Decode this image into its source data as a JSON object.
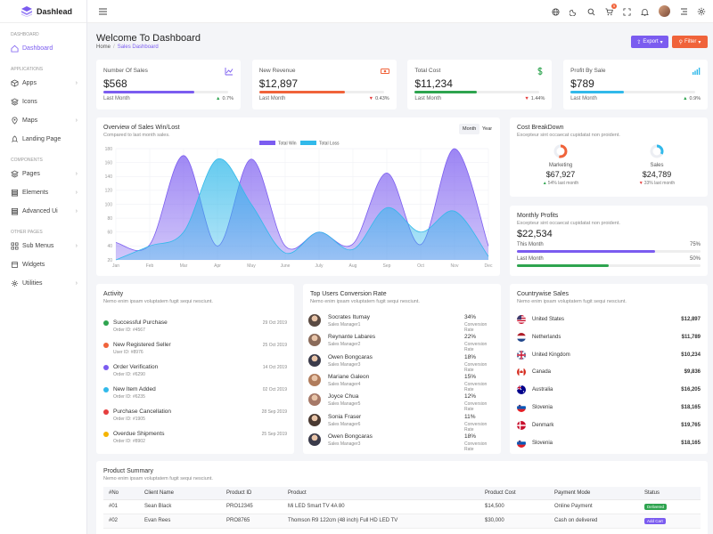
{
  "app": {
    "name": "Dashlead"
  },
  "sidebar": {
    "sections": [
      {
        "title": "Dashboard",
        "items": [
          {
            "label": "Dashboard",
            "icon": "home-icon",
            "active": true,
            "chevron": false
          }
        ]
      },
      {
        "title": "Applications",
        "items": [
          {
            "label": "Apps",
            "icon": "box-icon",
            "chevron": true
          },
          {
            "label": "Icons",
            "icon": "layers-icon",
            "chevron": false
          },
          {
            "label": "Maps",
            "icon": "map-pin-icon",
            "chevron": true
          },
          {
            "label": "Landing Page",
            "icon": "rocket-icon",
            "chevron": false
          }
        ]
      },
      {
        "title": "Components",
        "items": [
          {
            "label": "Pages",
            "icon": "layers-icon",
            "chevron": true
          },
          {
            "label": "Elements",
            "icon": "stack-icon",
            "chevron": true
          },
          {
            "label": "Advanced Ui",
            "icon": "stack-icon",
            "chevron": true
          }
        ]
      },
      {
        "title": "Other Pages",
        "items": [
          {
            "label": "Sub Menus",
            "icon": "grid-icon",
            "chevron": true
          },
          {
            "label": "Widgets",
            "icon": "widget-icon",
            "chevron": false
          },
          {
            "label": "Utilities",
            "icon": "gear-icon",
            "chevron": true
          }
        ]
      }
    ]
  },
  "header": {
    "cart_count": "5"
  },
  "page": {
    "title": "Welcome To Dashboard",
    "breadcrumb": [
      "Home",
      "Sales Dashboard"
    ],
    "export_label": "Export",
    "filter_label": "Filter"
  },
  "stats": [
    {
      "label": "Number Of Sales",
      "value": "$568",
      "foot": "Last Month",
      "change": "0.7%",
      "dir": "up",
      "color": "#7b5cf0",
      "progress": 0.73,
      "icon": "line-chart-icon"
    },
    {
      "label": "New Revenue",
      "value": "$12,897",
      "foot": "Last Month",
      "change": "0.43%",
      "dir": "down",
      "color": "#f0633a",
      "progress": 0.69,
      "icon": "money-icon"
    },
    {
      "label": "Total Cost",
      "value": "$11,234",
      "foot": "Last Month",
      "change": "1.44%",
      "dir": "down",
      "color": "#2ea44f",
      "progress": 0.5,
      "icon": "dollar-icon"
    },
    {
      "label": "Profit By Sale",
      "value": "$789",
      "foot": "Last Month",
      "change": "0.9%",
      "dir": "up",
      "color": "#31b9ea",
      "progress": 0.43,
      "icon": "bar-signal-icon"
    }
  ],
  "overview": {
    "title": "Overview of Sales Win/Lost",
    "subtitle": "Compared to last month sales.",
    "toggle": [
      "Month",
      "Year"
    ]
  },
  "chart_data": {
    "type": "area",
    "categories": [
      "Jan",
      "Feb",
      "Mar",
      "Apr",
      "May",
      "June",
      "July",
      "Aug",
      "Sep",
      "Oct",
      "Nov",
      "Dec"
    ],
    "series": [
      {
        "name": "Total Win",
        "color": "#7b5cf0",
        "values": [
          45,
          42,
          170,
          40,
          165,
          40,
          60,
          43,
          145,
          42,
          180,
          40
        ]
      },
      {
        "name": "Total Loss",
        "color": "#31b9ea",
        "values": [
          20,
          40,
          60,
          165,
          100,
          30,
          60,
          35,
          95,
          60,
          90,
          25
        ]
      }
    ],
    "ylim": [
      20,
      180
    ],
    "yticks": [
      20,
      40,
      60,
      80,
      100,
      120,
      140,
      160,
      180
    ],
    "legend": "top",
    "grid": true
  },
  "cost": {
    "title": "Cost BreakDown",
    "subtitle": "Excepteur sint occaecat cupidatat non proident.",
    "items": [
      {
        "label": "Marketing",
        "value": "$67,927",
        "change": "54% last month",
        "dir": "up",
        "color": "#f0633a",
        "fraction": 0.54
      },
      {
        "label": "Sales",
        "value": "$24,789",
        "change": "33% last month",
        "dir": "down",
        "color": "#31b9ea",
        "fraction": 0.33
      }
    ]
  },
  "profits": {
    "title": "Monthly Profits",
    "subtitle": "Excepteur sint occaecat cupidatat non proident.",
    "value": "$22,534",
    "rows": [
      {
        "label": "This Month",
        "pct": "75%",
        "fraction": 0.75,
        "color": "#7b5cf0"
      },
      {
        "label": "Last Month",
        "pct": "50%",
        "fraction": 0.5,
        "color": "#2ea44f"
      }
    ]
  },
  "activity": {
    "title": "Activity",
    "subtitle": "Nemo enim ipsam voluptatem fugit sequi nesciunt.",
    "items": [
      {
        "title": "Successful Purchase",
        "sub": "Order ID: #4567",
        "date": "29 Oct 2019",
        "color": "#2ea44f"
      },
      {
        "title": "New Registered Seller",
        "sub": "User ID: #8976",
        "date": "25 Oct 2019",
        "color": "#f0633a"
      },
      {
        "title": "Order Verification",
        "sub": "Order ID: #6290",
        "date": "14 Oct 2019",
        "color": "#7b5cf0"
      },
      {
        "title": "New Item Added",
        "sub": "Order ID: #6235",
        "date": "02 Oct 2019",
        "color": "#31b9ea"
      },
      {
        "title": "Purchase Cancellation",
        "sub": "Order ID: #1905",
        "date": "28 Sep 2019",
        "color": "#e53e3e"
      },
      {
        "title": "Overdue Shipments",
        "sub": "Order ID: #8902",
        "date": "25 Sep 2019",
        "color": "#f5b400"
      }
    ]
  },
  "users": {
    "title": "Top Users Conversion Rate",
    "subtitle": "Nemo enim ipsam voluptatem fugit sequi nesciunt.",
    "rate_label": "Conversion Rate",
    "items": [
      {
        "name": "Socrates Itumay",
        "role": "Sales Manager1",
        "rate": "34%",
        "color": "#5a4a42"
      },
      {
        "name": "Reynante Labares",
        "role": "Sales Manager2",
        "rate": "22%",
        "color": "#8a6b5a"
      },
      {
        "name": "Owen Bongcaras",
        "role": "Sales Manager3",
        "rate": "18%",
        "color": "#3b3b4a"
      },
      {
        "name": "Mariane Galeon",
        "role": "Sales Manager4",
        "rate": "15%",
        "color": "#b07c5c"
      },
      {
        "name": "Joyce Chua",
        "role": "Sales Manager5",
        "rate": "12%",
        "color": "#a67968"
      },
      {
        "name": "Sonia Fraser",
        "role": "Sales Manager6",
        "rate": "11%",
        "color": "#4a3a32"
      },
      {
        "name": "Owen Bongcaras",
        "role": "Sales Manager3",
        "rate": "18%",
        "color": "#3b3b4a"
      }
    ]
  },
  "countries": {
    "title": "Countrywise Sales",
    "subtitle": "Nemo enim ipsam voluptatem fugit sequi nesciunt.",
    "items": [
      {
        "name": "United States",
        "value": "$12,897",
        "flag": "us-flag-icon"
      },
      {
        "name": "Netherlands",
        "value": "$11,789",
        "flag": "nl-flag-icon"
      },
      {
        "name": "United Kingdom",
        "value": "$10,234",
        "flag": "uk-flag-icon"
      },
      {
        "name": "Canada",
        "value": "$9,836",
        "flag": "ca-flag-icon"
      },
      {
        "name": "Australia",
        "value": "$16,205",
        "flag": "au-flag-icon"
      },
      {
        "name": "Slovenia",
        "value": "$18,165",
        "flag": "si-flag-icon"
      },
      {
        "name": "Denmark",
        "value": "$19,765",
        "flag": "dk-flag-icon"
      },
      {
        "name": "Slovenia",
        "value": "$18,165",
        "flag": "si-flag-icon"
      }
    ]
  },
  "products": {
    "title": "Product Summary",
    "subtitle": "Nemo enim ipsam voluptatem fugit sequi nesciunt.",
    "columns": [
      "#No",
      "Client Name",
      "Product ID",
      "Product",
      "Product Cost",
      "Payment Mode",
      "Status"
    ],
    "rows": [
      {
        "no": "#01",
        "client": "Sean Black",
        "pid": "PRO12345",
        "product": "Mi LED Smart TV 4A 80",
        "cost": "$14,500",
        "mode": "Online Payment",
        "status": "Delivered",
        "status_color": "#2ea44f"
      },
      {
        "no": "#02",
        "client": "Evan Rees",
        "pid": "PRO8765",
        "product": "Thomson R9 122cm (48 inch) Full HD LED TV",
        "cost": "$30,000",
        "mode": "Cash on delivered",
        "status": "Add Cart",
        "status_color": "#7b5cf0"
      }
    ]
  }
}
